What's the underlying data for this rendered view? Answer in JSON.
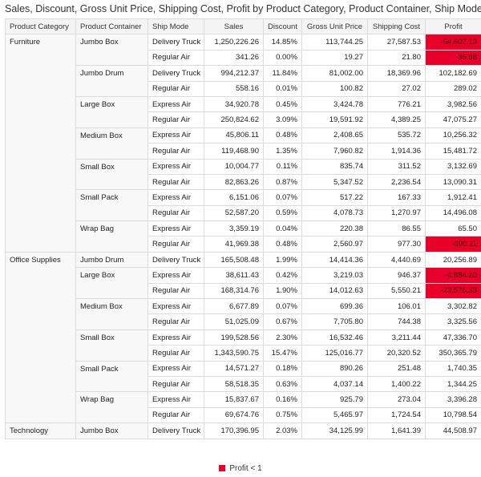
{
  "title": "Sales, Discount, Gross Unit Price, Shipping Cost, Profit by Product Category, Product Container, Ship Mode",
  "table": {
    "columns": [
      "Product Category",
      "Product Container",
      "Ship Mode",
      "Sales",
      "Discount",
      "Gross Unit Price",
      "Shipping Cost",
      "Profit"
    ],
    "highlight_color": "#e8002a",
    "groups": [
      {
        "name": "Furniture",
        "containers": [
          {
            "name": "Jumbo Box",
            "rows": [
              {
                "cells": [
                  "Delivery Truck",
                  "1,250,226.26",
                  "14.85%",
                  "113,744.25",
                  "27,587.53",
                  "-54,607.13"
                ],
                "highlight": true
              },
              {
                "cells": [
                  "Regular Air",
                  "341.26",
                  "0.00%",
                  "19.27",
                  "21.80",
                  "-36.88"
                ],
                "highlight": true
              }
            ]
          },
          {
            "name": "Jumbo Drum",
            "rows": [
              {
                "cells": [
                  "Delivery Truck",
                  "994,212.37",
                  "11.84%",
                  "81,002.00",
                  "18,369.96",
                  "102,182.69"
                ]
              },
              {
                "cells": [
                  "Regular Air",
                  "558.16",
                  "0.01%",
                  "100.82",
                  "27.02",
                  "289.02"
                ]
              }
            ]
          },
          {
            "name": "Large Box",
            "rows": [
              {
                "cells": [
                  "Express Air",
                  "34,920.78",
                  "0.45%",
                  "3,424.78",
                  "776.21",
                  "3,982.56"
                ]
              },
              {
                "cells": [
                  "Regular Air",
                  "250,824.62",
                  "3.09%",
                  "19,591.92",
                  "4,389.25",
                  "47,075.27"
                ]
              }
            ]
          },
          {
            "name": "Medium Box",
            "rows": [
              {
                "cells": [
                  "Express Air",
                  "45,806.11",
                  "0.48%",
                  "2,408.65",
                  "535.72",
                  "10,256.32"
                ]
              },
              {
                "cells": [
                  "Regular Air",
                  "119,468.90",
                  "1.35%",
                  "7,960.82",
                  "1,914.36",
                  "15,481.72"
                ]
              }
            ]
          },
          {
            "name": "Small Box",
            "rows": [
              {
                "cells": [
                  "Express Air",
                  "10,004.77",
                  "0.11%",
                  "835.74",
                  "311.52",
                  "3,132.69"
                ]
              },
              {
                "cells": [
                  "Regular Air",
                  "82,863.26",
                  "0.87%",
                  "5,347.52",
                  "2,236.54",
                  "13,090.31"
                ]
              }
            ]
          },
          {
            "name": "Small Pack",
            "rows": [
              {
                "cells": [
                  "Express Air",
                  "6,151.06",
                  "0.07%",
                  "517.22",
                  "167.33",
                  "1,912.41"
                ]
              },
              {
                "cells": [
                  "Regular Air",
                  "52,587.20",
                  "0.59%",
                  "4,078.73",
                  "1,270.97",
                  "14,496.08"
                ]
              }
            ]
          },
          {
            "name": "Wrap Bag",
            "rows": [
              {
                "cells": [
                  "Express Air",
                  "3,359.19",
                  "0.04%",
                  "220.38",
                  "86.55",
                  "65.50"
                ]
              },
              {
                "cells": [
                  "Regular Air",
                  "41,969.38",
                  "0.48%",
                  "2,560.97",
                  "977.30",
                  "-690.11"
                ],
                "highlight": true
              }
            ]
          }
        ]
      },
      {
        "name": "Office Supplies",
        "containers": [
          {
            "name": "Jumbo Drum",
            "rows": [
              {
                "cells": [
                  "Delivery Truck",
                  "165,508.48",
                  "1.99%",
                  "14,414.36",
                  "4,440.69",
                  "20,256.89"
                ]
              }
            ]
          },
          {
            "name": "Large Box",
            "rows": [
              {
                "cells": [
                  "Express Air",
                  "38,611.43",
                  "0.42%",
                  "3,219.03",
                  "946.37",
                  "-4,884.20"
                ],
                "highlight": true
              },
              {
                "cells": [
                  "Regular Air",
                  "168,314.76",
                  "1.90%",
                  "14,012.63",
                  "5,550.21",
                  "-23,576.33"
                ],
                "highlight": true
              }
            ]
          },
          {
            "name": "Medium Box",
            "rows": [
              {
                "cells": [
                  "Express Air",
                  "6,677.89",
                  "0.07%",
                  "699.36",
                  "106.01",
                  "3,302.82"
                ]
              },
              {
                "cells": [
                  "Regular Air",
                  "51,025.09",
                  "0.67%",
                  "7,705.80",
                  "744.38",
                  "3,325.56"
                ]
              }
            ]
          },
          {
            "name": "Small Box",
            "rows": [
              {
                "cells": [
                  "Express Air",
                  "199,528.56",
                  "2.30%",
                  "16,532.46",
                  "3,211.44",
                  "47,336.70"
                ]
              },
              {
                "cells": [
                  "Regular Air",
                  "1,343,590.75",
                  "15.47%",
                  "125,016.77",
                  "20,320.52",
                  "350,365.79"
                ]
              }
            ]
          },
          {
            "name": "Small Pack",
            "rows": [
              {
                "cells": [
                  "Express Air",
                  "14,571.27",
                  "0.18%",
                  "890.26",
                  "251.48",
                  "1,740.35"
                ]
              },
              {
                "cells": [
                  "Regular Air",
                  "58,518.35",
                  "0.63%",
                  "4,037.14",
                  "1,400.22",
                  "1,344.25"
                ]
              }
            ]
          },
          {
            "name": "Wrap Bag",
            "rows": [
              {
                "cells": [
                  "Express Air",
                  "15,837.67",
                  "0.16%",
                  "925.79",
                  "273.04",
                  "3,396.28"
                ]
              },
              {
                "cells": [
                  "Regular Air",
                  "69,674.76",
                  "0.75%",
                  "5,465.97",
                  "1,724.54",
                  "10,798.54"
                ]
              }
            ]
          }
        ]
      },
      {
        "name": "Technology",
        "containers": [
          {
            "name": "Jumbo Box",
            "rows": [
              {
                "cells": [
                  "Delivery Truck",
                  "170,396.95",
                  "2.03%",
                  "34,125.99",
                  "1,641.39",
                  "44,508.97"
                ]
              }
            ]
          }
        ]
      }
    ]
  },
  "legend": {
    "label": "Profit < 1"
  }
}
